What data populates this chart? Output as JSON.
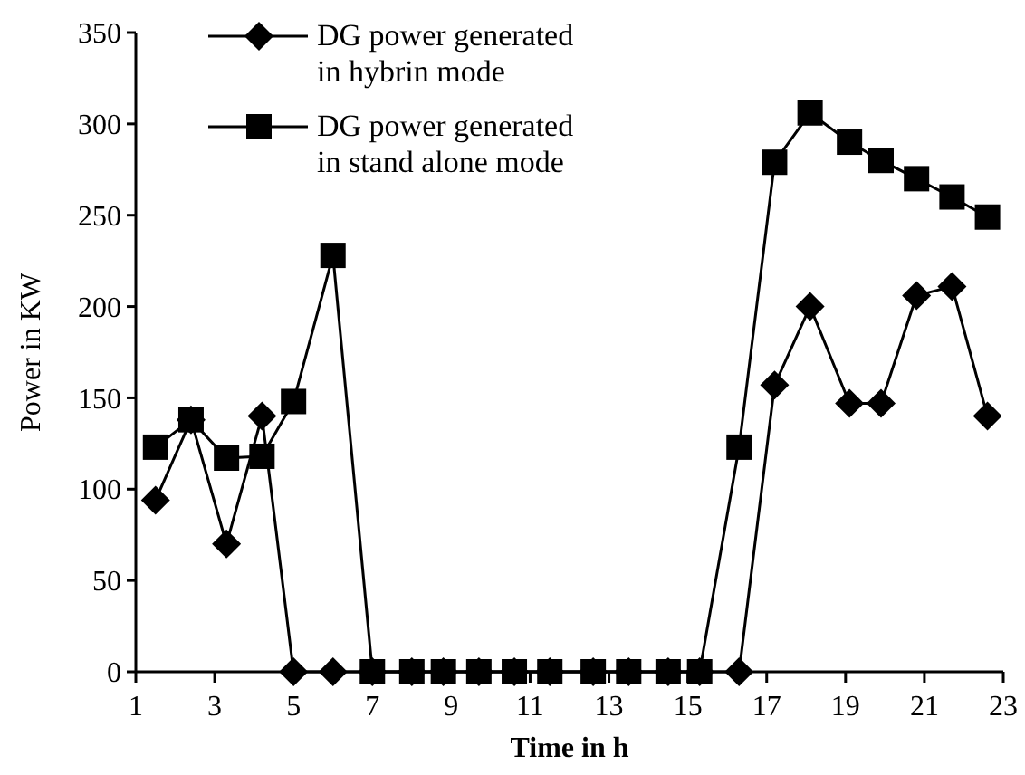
{
  "chart_data": {
    "type": "line",
    "xlabel": "Time in h",
    "ylabel": "Power in KW",
    "x": [
      1.5,
      2.4,
      3.3,
      4.2,
      5.0,
      6.0,
      7.0,
      8.0,
      8.8,
      9.7,
      10.6,
      11.5,
      12.6,
      13.5,
      14.5,
      15.3,
      16.3,
      17.2,
      18.1,
      19.1,
      19.9,
      20.8,
      21.7,
      22.6
    ],
    "xlim": [
      1,
      23
    ],
    "xticks": [
      1,
      3,
      5,
      7,
      9,
      11,
      13,
      15,
      17,
      19,
      21,
      23
    ],
    "ylim": [
      0,
      350
    ],
    "yticks": [
      0,
      50,
      100,
      150,
      200,
      250,
      300,
      350
    ],
    "series": [
      {
        "name": "DG power generated in hybrin mode",
        "color": "#000000",
        "marker": "diamond",
        "values": [
          94,
          138,
          70,
          140,
          0,
          0,
          0,
          0,
          0,
          0,
          0,
          0,
          0,
          0,
          0,
          0,
          0,
          157,
          200,
          147,
          147,
          206,
          211,
          140
        ]
      },
      {
        "name": "DG power generated in stand alone  mode",
        "color": "#000000",
        "marker": "square",
        "values": [
          123,
          138,
          117,
          118,
          148,
          228,
          0,
          0,
          0,
          0,
          0,
          0,
          0,
          0,
          0,
          0,
          123,
          279,
          306,
          290,
          280,
          270,
          260,
          249
        ]
      }
    ],
    "legend": "top left",
    "grid": false,
    "line_style": "solid"
  }
}
